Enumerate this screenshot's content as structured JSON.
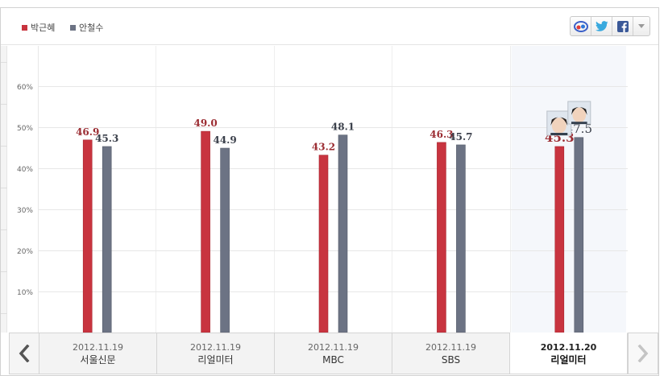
{
  "legend": [
    {
      "label": "박근혜",
      "color": "#c8343f"
    },
    {
      "label": "안철수",
      "color": "#6c7384"
    }
  ],
  "share_buttons": [
    {
      "icon": "mydaum-icon"
    },
    {
      "icon": "twitter-icon"
    },
    {
      "icon": "facebook-icon"
    },
    {
      "icon": "dropdown-arrow-icon"
    }
  ],
  "colors": {
    "park": "#c8343f",
    "ahn": "#6c7384",
    "park_label": "#9b2c32",
    "ahn_label": "#3a3f4a",
    "highlight": "#f5f7fb"
  },
  "chart_data": {
    "type": "bar",
    "categories": [
      "2012.11.19 서울신문",
      "2012.11.19 리얼미터",
      "2012.11.19 MBC",
      "2012.11.19 SBS",
      "2012.11.20 리얼미터"
    ],
    "series": [
      {
        "name": "박근혜",
        "values": [
          46.9,
          49.0,
          43.2,
          46.3,
          45.3
        ]
      },
      {
        "name": "안철수",
        "values": [
          45.3,
          44.9,
          48.1,
          45.7,
          47.5
        ]
      }
    ],
    "value_labels": {
      "박근혜": [
        "46.9",
        "49.0",
        "43.2",
        "46.3",
        "45.3"
      ],
      "안철수": [
        "45.3",
        "44.9",
        "48.1",
        "45.7",
        "47.5"
      ]
    },
    "y_ticks": [
      "10%",
      "20%",
      "30%",
      "40%",
      "50%",
      "60%"
    ],
    "y_tick_values": [
      10,
      20,
      30,
      40,
      50,
      60
    ],
    "ylim": [
      0,
      65
    ],
    "grid": true,
    "highlighted_index": 4
  },
  "nav": {
    "tabs": [
      {
        "date": "2012.11.19",
        "source": "서울신문"
      },
      {
        "date": "2012.11.19",
        "source": "리얼미터"
      },
      {
        "date": "2012.11.19",
        "source": "MBC"
      },
      {
        "date": "2012.11.19",
        "source": "SBS"
      },
      {
        "date": "2012.11.20",
        "source": "리얼미터"
      }
    ],
    "active_index": 4,
    "prev_icon": "chevron-left-icon",
    "next_icon": "chevron-right-icon"
  }
}
